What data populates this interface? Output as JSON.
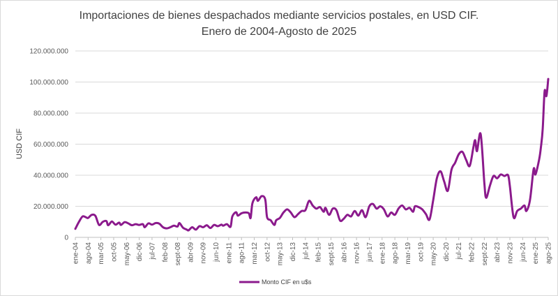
{
  "chart_data": {
    "type": "line",
    "title": [
      "Importaciones de bienes despachados  mediante servicios postales, en USD CIF.",
      "Enero de 2004-Agosto de 2025"
    ],
    "ylabel": "USD CIF",
    "xlabel": "",
    "ylim": [
      0,
      120000000
    ],
    "y_ticks": [
      {
        "value": 0,
        "label": "0"
      },
      {
        "value": 20000000,
        "label": "20.000.000"
      },
      {
        "value": 40000000,
        "label": "40.000.000"
      },
      {
        "value": 60000000,
        "label": "60.000.000"
      },
      {
        "value": 80000000,
        "label": "80.000.000"
      },
      {
        "value": 100000000,
        "label": "100.000.000"
      },
      {
        "value": 120000000,
        "label": "120.000.000"
      }
    ],
    "grid": true,
    "legend": "bottom",
    "line_color": "#8B1A8C",
    "x_start": "2004-01",
    "x_end": "2025-08",
    "x_tick_labels": [
      {
        "date": "2004-01",
        "label": "ene-04"
      },
      {
        "date": "2004-08",
        "label": "ago-04"
      },
      {
        "date": "2005-03",
        "label": "mar-05"
      },
      {
        "date": "2005-10",
        "label": "oct-05"
      },
      {
        "date": "2006-05",
        "label": "may-06"
      },
      {
        "date": "2006-12",
        "label": "dic-06"
      },
      {
        "date": "2007-07",
        "label": "jul-07"
      },
      {
        "date": "2008-02",
        "label": "feb-08"
      },
      {
        "date": "2008-09",
        "label": "sept-08"
      },
      {
        "date": "2009-04",
        "label": "abr-09"
      },
      {
        "date": "2009-11",
        "label": "nov-09"
      },
      {
        "date": "2010-06",
        "label": "jun-10"
      },
      {
        "date": "2011-01",
        "label": "ene-11"
      },
      {
        "date": "2011-08",
        "label": "ago-11"
      },
      {
        "date": "2012-03",
        "label": "mar-12"
      },
      {
        "date": "2012-10",
        "label": "oct-12"
      },
      {
        "date": "2013-05",
        "label": "may-13"
      },
      {
        "date": "2013-12",
        "label": "dic-13"
      },
      {
        "date": "2014-07",
        "label": "jul-14"
      },
      {
        "date": "2015-02",
        "label": "feb-15"
      },
      {
        "date": "2015-09",
        "label": "sept-15"
      },
      {
        "date": "2016-04",
        "label": "abr-16"
      },
      {
        "date": "2016-11",
        "label": "nov-16"
      },
      {
        "date": "2017-06",
        "label": "jun-17"
      },
      {
        "date": "2018-01",
        "label": "ene-18"
      },
      {
        "date": "2018-08",
        "label": "ago-18"
      },
      {
        "date": "2019-03",
        "label": "mar-19"
      },
      {
        "date": "2019-10",
        "label": "oct-19"
      },
      {
        "date": "2020-05",
        "label": "may-20"
      },
      {
        "date": "2020-12",
        "label": "dic-20"
      },
      {
        "date": "2021-07",
        "label": "jul-21"
      },
      {
        "date": "2022-02",
        "label": "feb-22"
      },
      {
        "date": "2022-09",
        "label": "sept-22"
      },
      {
        "date": "2023-04",
        "label": "abr-23"
      },
      {
        "date": "2023-11",
        "label": "nov-23"
      },
      {
        "date": "2024-06",
        "label": "jun-24"
      },
      {
        "date": "2025-01",
        "label": "ene-25"
      },
      {
        "date": "2025-08",
        "label": "ago-25"
      }
    ],
    "series": [
      {
        "name": "Monto CIF en u$s",
        "points": [
          {
            "x": "2004-01",
            "y": 5500000
          },
          {
            "x": "2004-03",
            "y": 10000000
          },
          {
            "x": "2004-05",
            "y": 13500000
          },
          {
            "x": "2004-07",
            "y": 12800000
          },
          {
            "x": "2004-08",
            "y": 12500000
          },
          {
            "x": "2004-10",
            "y": 14500000
          },
          {
            "x": "2004-12",
            "y": 13800000
          },
          {
            "x": "2005-02",
            "y": 8000000
          },
          {
            "x": "2005-04",
            "y": 10000000
          },
          {
            "x": "2005-06",
            "y": 10500000
          },
          {
            "x": "2005-07",
            "y": 7800000
          },
          {
            "x": "2005-09",
            "y": 10200000
          },
          {
            "x": "2005-11",
            "y": 8200000
          },
          {
            "x": "2006-01",
            "y": 9500000
          },
          {
            "x": "2006-02",
            "y": 8000000
          },
          {
            "x": "2006-04",
            "y": 9800000
          },
          {
            "x": "2006-06",
            "y": 9000000
          },
          {
            "x": "2006-08",
            "y": 7800000
          },
          {
            "x": "2006-10",
            "y": 8500000
          },
          {
            "x": "2006-12",
            "y": 8000000
          },
          {
            "x": "2007-02",
            "y": 8500000
          },
          {
            "x": "2007-03",
            "y": 6500000
          },
          {
            "x": "2007-05",
            "y": 9000000
          },
          {
            "x": "2007-07",
            "y": 8200000
          },
          {
            "x": "2007-09",
            "y": 9200000
          },
          {
            "x": "2007-11",
            "y": 8800000
          },
          {
            "x": "2008-01",
            "y": 6500000
          },
          {
            "x": "2008-03",
            "y": 5800000
          },
          {
            "x": "2008-05",
            "y": 6500000
          },
          {
            "x": "2008-07",
            "y": 7500000
          },
          {
            "x": "2008-09",
            "y": 7000000
          },
          {
            "x": "2008-10",
            "y": 9200000
          },
          {
            "x": "2008-12",
            "y": 6200000
          },
          {
            "x": "2009-02",
            "y": 5000000
          },
          {
            "x": "2009-03",
            "y": 4500000
          },
          {
            "x": "2009-05",
            "y": 6500000
          },
          {
            "x": "2009-07",
            "y": 5000000
          },
          {
            "x": "2009-09",
            "y": 7200000
          },
          {
            "x": "2009-11",
            "y": 6500000
          },
          {
            "x": "2010-01",
            "y": 7800000
          },
          {
            "x": "2010-03",
            "y": 6000000
          },
          {
            "x": "2010-05",
            "y": 8000000
          },
          {
            "x": "2010-07",
            "y": 7200000
          },
          {
            "x": "2010-09",
            "y": 8200000
          },
          {
            "x": "2010-10",
            "y": 7500000
          },
          {
            "x": "2010-12",
            "y": 8500000
          },
          {
            "x": "2011-02",
            "y": 6800000
          },
          {
            "x": "2011-03",
            "y": 13500000
          },
          {
            "x": "2011-05",
            "y": 16200000
          },
          {
            "x": "2011-06",
            "y": 14000000
          },
          {
            "x": "2011-08",
            "y": 15500000
          },
          {
            "x": "2011-10",
            "y": 16000000
          },
          {
            "x": "2011-12",
            "y": 15500000
          },
          {
            "x": "2012-01",
            "y": 12500000
          },
          {
            "x": "2012-02",
            "y": 22000000
          },
          {
            "x": "2012-04",
            "y": 25800000
          },
          {
            "x": "2012-05",
            "y": 23500000
          },
          {
            "x": "2012-07",
            "y": 26500000
          },
          {
            "x": "2012-09",
            "y": 24500000
          },
          {
            "x": "2012-10",
            "y": 13000000
          },
          {
            "x": "2012-12",
            "y": 11000000
          },
          {
            "x": "2013-02",
            "y": 8000000
          },
          {
            "x": "2013-03",
            "y": 11000000
          },
          {
            "x": "2013-05",
            "y": 12500000
          },
          {
            "x": "2013-07",
            "y": 16000000
          },
          {
            "x": "2013-09",
            "y": 18000000
          },
          {
            "x": "2013-11",
            "y": 16000000
          },
          {
            "x": "2014-01",
            "y": 13000000
          },
          {
            "x": "2014-03",
            "y": 15000000
          },
          {
            "x": "2014-05",
            "y": 17000000
          },
          {
            "x": "2014-07",
            "y": 17500000
          },
          {
            "x": "2014-09",
            "y": 23500000
          },
          {
            "x": "2014-11",
            "y": 20500000
          },
          {
            "x": "2015-01",
            "y": 18500000
          },
          {
            "x": "2015-03",
            "y": 19500000
          },
          {
            "x": "2015-05",
            "y": 16500000
          },
          {
            "x": "2015-06",
            "y": 19000000
          },
          {
            "x": "2015-08",
            "y": 14500000
          },
          {
            "x": "2015-10",
            "y": 18500000
          },
          {
            "x": "2015-12",
            "y": 17500000
          },
          {
            "x": "2016-02",
            "y": 10800000
          },
          {
            "x": "2016-04",
            "y": 12000000
          },
          {
            "x": "2016-06",
            "y": 14500000
          },
          {
            "x": "2016-08",
            "y": 13500000
          },
          {
            "x": "2016-10",
            "y": 17000000
          },
          {
            "x": "2016-12",
            "y": 14000000
          },
          {
            "x": "2017-02",
            "y": 17500000
          },
          {
            "x": "2017-04",
            "y": 13000000
          },
          {
            "x": "2017-06",
            "y": 20000000
          },
          {
            "x": "2017-08",
            "y": 21500000
          },
          {
            "x": "2017-10",
            "y": 18500000
          },
          {
            "x": "2017-12",
            "y": 20000000
          },
          {
            "x": "2018-02",
            "y": 18000000
          },
          {
            "x": "2018-04",
            "y": 13500000
          },
          {
            "x": "2018-06",
            "y": 16000000
          },
          {
            "x": "2018-08",
            "y": 14500000
          },
          {
            "x": "2018-10",
            "y": 18500000
          },
          {
            "x": "2018-12",
            "y": 20500000
          },
          {
            "x": "2019-02",
            "y": 18000000
          },
          {
            "x": "2019-04",
            "y": 19000000
          },
          {
            "x": "2019-06",
            "y": 16500000
          },
          {
            "x": "2019-07",
            "y": 20000000
          },
          {
            "x": "2019-09",
            "y": 19500000
          },
          {
            "x": "2019-11",
            "y": 18000000
          },
          {
            "x": "2020-01",
            "y": 15000000
          },
          {
            "x": "2020-03",
            "y": 11500000
          },
          {
            "x": "2020-05",
            "y": 24000000
          },
          {
            "x": "2020-07",
            "y": 38000000
          },
          {
            "x": "2020-09",
            "y": 42500000
          },
          {
            "x": "2020-11",
            "y": 36000000
          },
          {
            "x": "2021-01",
            "y": 30000000
          },
          {
            "x": "2021-03",
            "y": 43500000
          },
          {
            "x": "2021-05",
            "y": 48000000
          },
          {
            "x": "2021-07",
            "y": 53500000
          },
          {
            "x": "2021-09",
            "y": 55000000
          },
          {
            "x": "2021-11",
            "y": 50000000
          },
          {
            "x": "2022-01",
            "y": 46000000
          },
          {
            "x": "2022-03",
            "y": 58000000
          },
          {
            "x": "2022-04",
            "y": 62500000
          },
          {
            "x": "2022-05",
            "y": 55500000
          },
          {
            "x": "2022-07",
            "y": 66500000
          },
          {
            "x": "2022-09",
            "y": 35000000
          },
          {
            "x": "2022-10",
            "y": 25500000
          },
          {
            "x": "2022-12",
            "y": 33000000
          },
          {
            "x": "2023-02",
            "y": 39500000
          },
          {
            "x": "2023-04",
            "y": 38000000
          },
          {
            "x": "2023-06",
            "y": 40500000
          },
          {
            "x": "2023-08",
            "y": 39500000
          },
          {
            "x": "2023-10",
            "y": 40000000
          },
          {
            "x": "2023-11",
            "y": 33000000
          },
          {
            "x": "2024-01",
            "y": 13000000
          },
          {
            "x": "2024-03",
            "y": 17000000
          },
          {
            "x": "2024-05",
            "y": 18500000
          },
          {
            "x": "2024-07",
            "y": 20500000
          },
          {
            "x": "2024-08",
            "y": 17000000
          },
          {
            "x": "2024-10",
            "y": 24000000
          },
          {
            "x": "2024-12",
            "y": 44000000
          },
          {
            "x": "2025-01",
            "y": 40500000
          },
          {
            "x": "2025-03",
            "y": 50000000
          },
          {
            "x": "2025-04",
            "y": 58000000
          },
          {
            "x": "2025-05",
            "y": 70000000
          },
          {
            "x": "2025-06",
            "y": 94000000
          },
          {
            "x": "2025-07",
            "y": 91000000
          },
          {
            "x": "2025-08",
            "y": 102000000
          }
        ]
      }
    ]
  }
}
